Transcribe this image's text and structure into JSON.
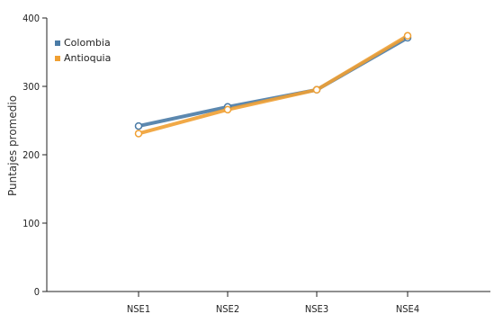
{
  "chart_data": {
    "type": "line",
    "title": "",
    "xlabel": "",
    "ylabel": "Puntajes promedio",
    "categories": [
      "NSE1",
      "NSE2",
      "NSE3",
      "NSE4"
    ],
    "ylim": [
      0,
      400
    ],
    "yticks": [
      0,
      100,
      200,
      300,
      400
    ],
    "grid": false,
    "legend_position": "top-left",
    "series": [
      {
        "name": "Colombia",
        "color": "#4a7ba6",
        "values": [
          242,
          270,
          295,
          371
        ]
      },
      {
        "name": "Antioquia",
        "color": "#f0a033",
        "values": [
          231,
          266,
          295,
          374
        ]
      }
    ]
  }
}
